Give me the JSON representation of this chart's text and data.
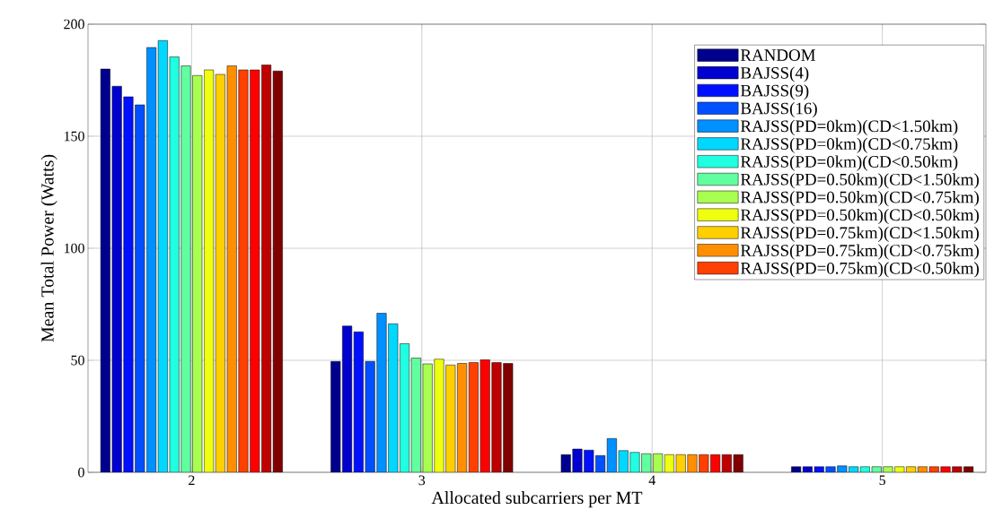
{
  "chart_data": {
    "type": "bar",
    "xlabel": "Allocated subcarriers per MT",
    "ylabel": "Mean Total Power (Watts)",
    "categories": [
      "2",
      "3",
      "4",
      "5"
    ],
    "ylim": [
      0,
      200
    ],
    "yticks": [
      0,
      50,
      100,
      150,
      200
    ],
    "grid": true,
    "legend": "top right",
    "series": [
      {
        "name": "RANDOM",
        "color": "#00008f",
        "values": [
          180,
          49.5,
          7.9,
          2.5
        ]
      },
      {
        "name": "BAJSS(4)",
        "color": "#0000cf",
        "values": [
          172.3,
          65.3,
          10.4,
          2.5
        ]
      },
      {
        "name": "BAJSS(9)",
        "color": "#0010ff",
        "values": [
          167.6,
          62.7,
          9.9,
          2.5
        ]
      },
      {
        "name": "BAJSS(16)",
        "color": "#0050ff",
        "values": [
          164,
          49.5,
          7.5,
          2.5
        ]
      },
      {
        "name": "RAJSS(PD=0km)(CD<1.50km)",
        "color": "#0090ff",
        "values": [
          189.6,
          71,
          15.1,
          2.9
        ]
      },
      {
        "name": "RAJSS(PD=0km)(CD<0.75km)",
        "color": "#00d8ff",
        "values": [
          192.7,
          66.3,
          9.7,
          2.5
        ]
      },
      {
        "name": "RAJSS(PD=0km)(CD<0.50km)",
        "color": "#20ffdf",
        "values": [
          185.4,
          57.4,
          8.9,
          2.5
        ]
      },
      {
        "name": "RAJSS(PD=0.50km)(CD<1.50km)",
        "color": "#60ff9f",
        "values": [
          181.4,
          51,
          8.3,
          2.5
        ]
      },
      {
        "name": "RAJSS(PD=0.50km)(CD<0.75km)",
        "color": "#a8ff50",
        "values": [
          177.1,
          48.4,
          8.3,
          2.5
        ]
      },
      {
        "name": "RAJSS(PD=0.50km)(CD<0.50km)",
        "color": "#efff10",
        "values": [
          179.6,
          50.5,
          7.9,
          2.5
        ]
      },
      {
        "name": "RAJSS(PD=0.75km)(CD<1.50km)",
        "color": "#ffcf00",
        "values": [
          177.6,
          47.9,
          7.9,
          2.5
        ]
      },
      {
        "name": "RAJSS(PD=0.75km)(CD<0.75km)",
        "color": "#ff8f00",
        "values": [
          181.4,
          48.6,
          7.9,
          2.5
        ]
      },
      {
        "name": "RAJSS(PD=0.75km)(CD<0.50km)",
        "color": "#ff4000",
        "values": [
          179.6,
          49,
          7.9,
          2.5
        ]
      },
      {
        "color": "#ff0000",
        "values": [
          179.6,
          50.2,
          7.9,
          2.5
        ]
      },
      {
        "color": "#bf0000",
        "values": [
          181.8,
          49,
          7.9,
          2.5
        ]
      },
      {
        "color": "#800000",
        "values": [
          179.1,
          48.6,
          7.9,
          2.5
        ]
      }
    ]
  }
}
